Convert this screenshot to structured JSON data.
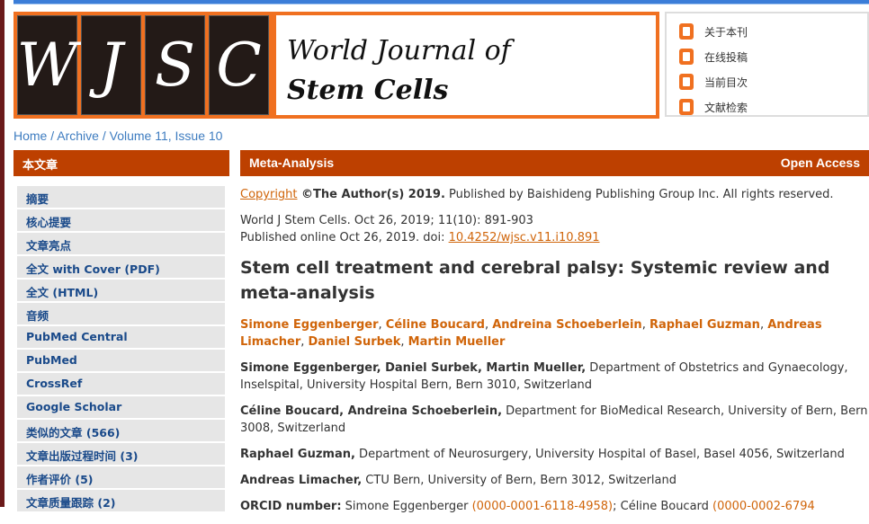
{
  "logo": {
    "letters": [
      "W",
      "J",
      "S",
      "C"
    ],
    "line1": "World Journal of",
    "line2": "Stem Cells"
  },
  "quick_links": [
    "关于本刊",
    "在线投稿",
    "当前目次",
    "文献检索"
  ],
  "breadcrumb": {
    "home": "Home",
    "archive": "Archive",
    "issue": "Volume 11, Issue 10",
    "sep": " / "
  },
  "sidebar": {
    "title": "本文章",
    "items": [
      "摘要",
      "核心提要",
      "文章亮点",
      "全文 with Cover (PDF)",
      "全文 (HTML)",
      "音频",
      "PubMed Central",
      "PubMed",
      "CrossRef",
      "Google Scholar",
      "类似的文章 (566)",
      "文章出版过程时间 (3)",
      "作者评价 (5)",
      "文章质量跟踪 (2)"
    ]
  },
  "article": {
    "type": "Meta-Analysis",
    "access": "Open Access",
    "copyright_link": "Copyright",
    "copyright_bold": " ©The Author(s) 2019.",
    "copyright_rest": " Published by Baishideng Publishing Group Inc. All rights reserved.",
    "citation": "World J Stem Cells. Oct 26, 2019; 11(10): 891-903",
    "published": "Published online Oct 26, 2019. doi: ",
    "doi": "10.4252/wjsc.v11.i10.891",
    "title": "Stem cell treatment and cerebral palsy: Systemic review and meta-analysis",
    "authors": [
      "Simone Eggenberger",
      "Céline Boucard",
      "Andreina Schoeberlein",
      "Raphael Guzman",
      "Andreas Limacher",
      "Daniel Surbek",
      "Martin Mueller"
    ],
    "affiliations": [
      {
        "names": "Simone Eggenberger, Daniel Surbek, Martin Mueller,",
        "text": " Department of Obstetrics and Gynaecology, Inselspital, University Hospital Bern, Bern 3010, Switzerland"
      },
      {
        "names": "Céline Boucard, Andreina Schoeberlein,",
        "text": " Department for BioMedical Research, University of Bern, Bern 3008, Switzerland"
      },
      {
        "names": "Raphael Guzman,",
        "text": " Department of Neurosurgery, University Hospital of Basel, Basel 4056, Switzerland"
      },
      {
        "names": "Andreas Limacher,",
        "text": " CTU Bern, University of Bern, Bern 3012, Switzerland"
      }
    ],
    "orcid": {
      "label": "ORCID number:",
      "a1": " Simone Eggenberger ",
      "id1": "(0000-0001-6118-4958)",
      "a2": "; Céline Boucard ",
      "id2": "(0000-0002-6794"
    }
  }
}
